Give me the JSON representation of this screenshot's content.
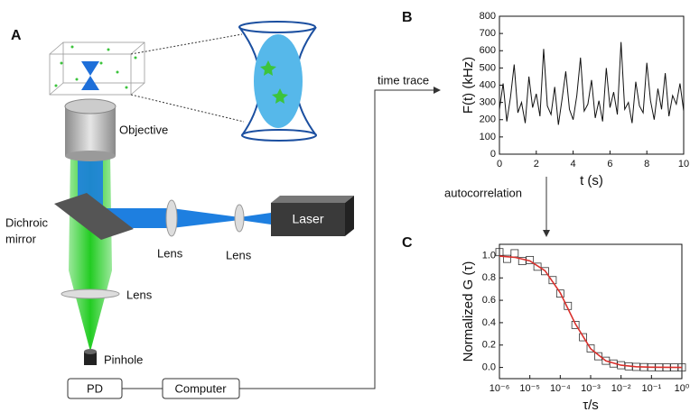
{
  "figure": {
    "panel_labels": [
      "A",
      "B",
      "C"
    ],
    "objective": "Objective",
    "dichroic_mirror": [
      "Dichroic",
      "mirror"
    ],
    "lenses": [
      "Lens",
      "Lens",
      "Lens"
    ],
    "laser": "Laser",
    "pinhole": "Pinhole",
    "detector": "PD",
    "computer": "Computer",
    "time_trace": "time trace",
    "autocorrelation": "autocorrelation"
  },
  "chart_data": [
    {
      "type": "line",
      "xlabel": "t (s)",
      "ylabel": "F(t) (kHz)",
      "color": "#111111",
      "x": [
        0,
        0.2,
        0.4,
        0.6,
        0.8,
        1,
        1.2,
        1.4,
        1.6,
        1.8,
        2,
        2.2,
        2.4,
        2.6,
        2.8,
        3,
        3.2,
        3.4,
        3.6,
        3.8,
        4,
        4.2,
        4.4,
        4.6,
        4.8,
        5,
        5.2,
        5.4,
        5.6,
        5.8,
        6,
        6.2,
        6.4,
        6.6,
        6.8,
        7,
        7.2,
        7.4,
        7.6,
        7.8,
        8,
        8.2,
        8.4,
        8.6,
        8.8,
        9,
        9.2,
        9.4,
        9.6,
        9.8,
        10
      ],
      "values": [
        260,
        410,
        190,
        330,
        520,
        240,
        300,
        180,
        450,
        270,
        350,
        220,
        610,
        280,
        230,
        390,
        170,
        320,
        480,
        260,
        200,
        340,
        560,
        250,
        290,
        430,
        210,
        310,
        190,
        500,
        270,
        360,
        230,
        650,
        260,
        300,
        180,
        420,
        280,
        240,
        530,
        310,
        200,
        380,
        260,
        470,
        220,
        340,
        290,
        410,
        250
      ],
      "xlim": [
        0,
        10
      ],
      "xticks": [
        0,
        2,
        4,
        6,
        8,
        10
      ],
      "ylim": [
        0,
        800
      ],
      "yticks": [
        0,
        100,
        200,
        300,
        400,
        500,
        600,
        700,
        800
      ]
    },
    {
      "type": "scatter",
      "xlabel": "τ/s",
      "ylabel": "Normalized G (τ)",
      "xscale": "log",
      "series": [
        {
          "type": "scatter",
          "color": "#333333",
          "x": [
            1e-06,
            1.78e-06,
            3.16e-06,
            5.62e-06,
            1e-05,
            1.78e-05,
            3.16e-05,
            5.62e-05,
            0.0001,
            0.000178,
            0.000316,
            0.000562,
            0.001,
            0.00178,
            0.00316,
            0.00562,
            0.01,
            0.0178,
            0.0316,
            0.0562,
            0.1,
            0.178,
            0.316,
            0.562,
            1
          ],
          "values": [
            1.03,
            0.97,
            1.02,
            0.95,
            0.96,
            0.9,
            0.86,
            0.78,
            0.66,
            0.55,
            0.38,
            0.27,
            0.17,
            0.1,
            0.06,
            0.035,
            0.02,
            0.01,
            0.005,
            0.003,
            0.002,
            0.001,
            0,
            0,
            0
          ]
        },
        {
          "type": "line",
          "color": "#d9302c",
          "x": [
            1e-06,
            3.16e-06,
            1e-05,
            3.16e-05,
            0.0001,
            0.000316,
            0.001,
            0.00316,
            0.01,
            0.0316,
            0.1,
            0.316,
            1
          ],
          "values": [
            0.995,
            0.984,
            0.952,
            0.864,
            0.667,
            0.388,
            0.167,
            0.059,
            0.02,
            0.006,
            0.002,
            0.001,
            0
          ]
        }
      ],
      "xlim": [
        1e-06,
        1
      ],
      "xticks": [
        {
          "value": 1e-06,
          "label": "10⁻⁶"
        },
        {
          "value": 1e-05,
          "label": "10⁻⁵"
        },
        {
          "value": 0.0001,
          "label": "10⁻⁴"
        },
        {
          "value": 0.001,
          "label": "10⁻³"
        },
        {
          "value": 0.01,
          "label": "10⁻²"
        },
        {
          "value": 0.1,
          "label": "10⁻¹"
        },
        {
          "value": 1,
          "label": "10⁰"
        }
      ],
      "ylim": [
        -0.1,
        1.1
      ],
      "yticks": [
        {
          "value": 0,
          "label": "0.0"
        },
        {
          "value": 0.2,
          "label": "0.2"
        },
        {
          "value": 0.4,
          "label": "0.4"
        },
        {
          "value": 0.6,
          "label": "0.6"
        },
        {
          "value": 0.8,
          "label": "0.8"
        },
        {
          "value": 1,
          "label": "1.0"
        }
      ]
    }
  ]
}
